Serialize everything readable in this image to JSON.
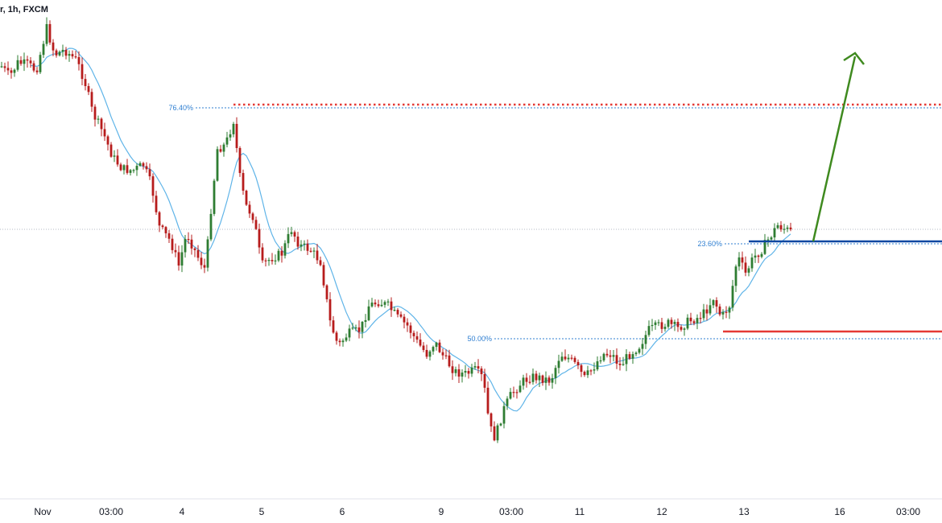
{
  "header": {
    "text": "r, 1h, FXCM"
  },
  "chart_data": {
    "type": "candlestick",
    "x_axis": {
      "tick_labels": [
        "Nov",
        "03:00",
        "4",
        "5",
        "6",
        "9",
        "03:00",
        "11",
        "12",
        "13",
        "16",
        "03:00"
      ]
    },
    "fib_levels": [
      {
        "label": "76.40%"
      },
      {
        "label": "23.60%"
      },
      {
        "label": "50.00%"
      }
    ],
    "annotations": {
      "target_line": "red dotted resistance at 76.40% level",
      "entry_line": "dark blue horizontal line at 23.60% level",
      "stop_line": "red horizontal line below 50.00% level",
      "arrow": "green arrow pointing up"
    },
    "moving_average": {
      "color": "#5fb4e8"
    },
    "colors": {
      "bull": "#2e7d32",
      "bear": "#b71c1c",
      "fib": "#2f7fd1",
      "target": "#e53935",
      "entry": "#0d47a1",
      "stop": "#e53935",
      "arrow": "#3f8a1f",
      "ma": "#5fb4e8"
    },
    "grid": false,
    "legend": "none"
  }
}
